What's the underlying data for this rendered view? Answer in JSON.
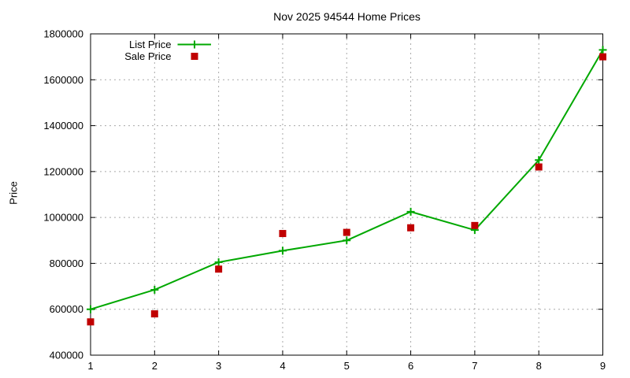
{
  "chart_data": {
    "type": "line",
    "title": "Nov 2025 94544 Home Prices",
    "xlabel": "",
    "ylabel": "Price",
    "x": [
      1,
      2,
      3,
      4,
      5,
      6,
      7,
      8,
      9
    ],
    "series": [
      {
        "name": "List Price",
        "style": "line-with-plus-markers",
        "color": "#00a800",
        "values": [
          600000,
          685000,
          805000,
          855000,
          900000,
          1025000,
          945000,
          1250000,
          1730000
        ]
      },
      {
        "name": "Sale Price",
        "style": "square-markers",
        "color": "#c00000",
        "values": [
          545000,
          580000,
          775000,
          930000,
          935000,
          955000,
          965000,
          1220000,
          1700000
        ]
      }
    ],
    "xlim": [
      1,
      9
    ],
    "ylim": [
      400000,
      1800000
    ],
    "x_ticks": [
      1,
      2,
      3,
      4,
      5,
      6,
      7,
      8,
      9
    ],
    "y_ticks": [
      400000,
      600000,
      800000,
      1000000,
      1200000,
      1400000,
      1600000,
      1800000
    ],
    "grid": true,
    "grid_color": "#a9a9a9",
    "axis_color": "#000000",
    "background_color": "#ffffff",
    "legend_position": "top-left-inside"
  }
}
